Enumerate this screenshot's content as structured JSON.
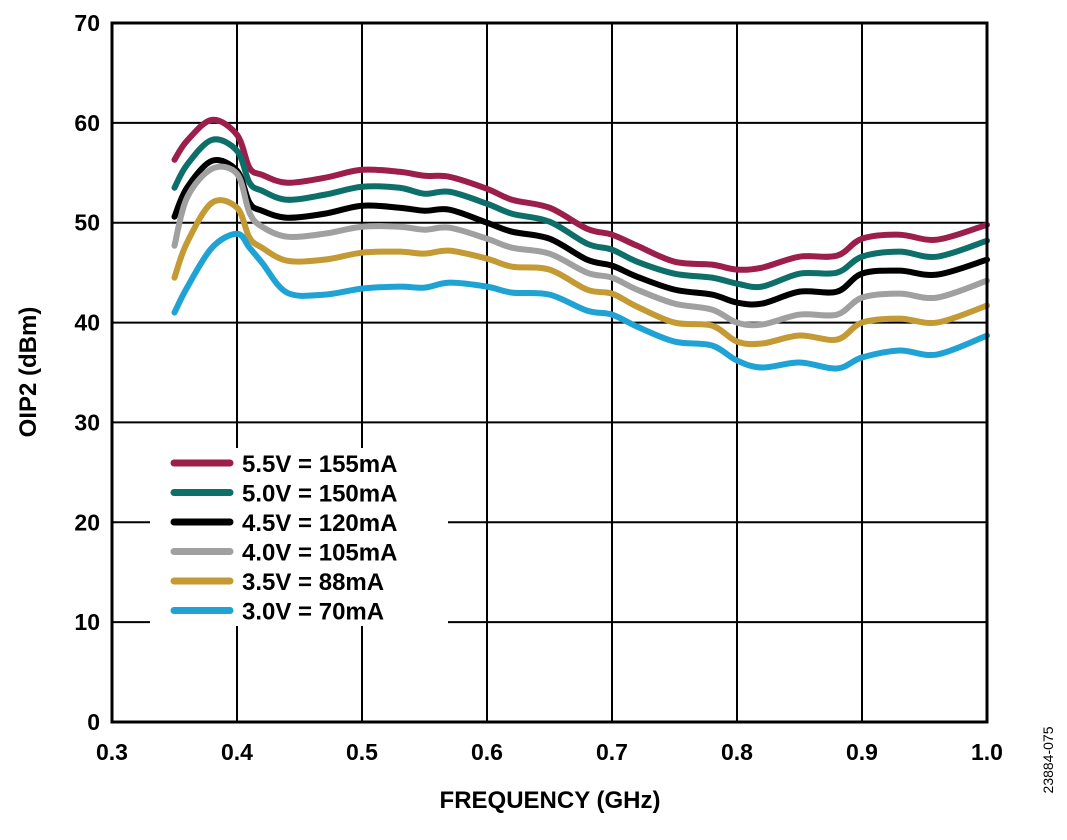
{
  "chart_data": {
    "type": "line",
    "title": "",
    "xlabel": "FREQUENCY (GHz)",
    "ylabel": "OIP2 (dBm)",
    "xlim": [
      0.3,
      1.0
    ],
    "ylim": [
      0,
      70
    ],
    "xticks": [
      "0.3",
      "0.4",
      "0.5",
      "0.6",
      "0.7",
      "0.8",
      "0.9",
      "1.0"
    ],
    "yticks": [
      "0",
      "10",
      "20",
      "30",
      "40",
      "50",
      "60",
      "70"
    ],
    "grid": true,
    "legend_placement": "lower-left",
    "figure_id": "23884-075",
    "x": [
      0.35,
      0.36,
      0.38,
      0.4,
      0.41,
      0.42,
      0.44,
      0.47,
      0.5,
      0.53,
      0.55,
      0.57,
      0.6,
      0.62,
      0.65,
      0.68,
      0.7,
      0.72,
      0.75,
      0.78,
      0.8,
      0.82,
      0.85,
      0.88,
      0.9,
      0.93,
      0.96,
      1.0
    ],
    "series": [
      {
        "name": "5.5V = 155mA",
        "color": "#9b1f4a",
        "values": [
          56.3,
          58.2,
          60.3,
          58.8,
          55.5,
          54.8,
          54.0,
          54.5,
          55.3,
          55.1,
          54.7,
          54.6,
          53.4,
          52.3,
          51.5,
          49.4,
          48.8,
          47.7,
          46.1,
          45.8,
          45.3,
          45.5,
          46.6,
          46.7,
          48.4,
          48.8,
          48.3,
          49.8
        ]
      },
      {
        "name": "5.0V = 150mA",
        "color": "#0e6f6a",
        "values": [
          53.5,
          55.8,
          58.3,
          57.2,
          54.0,
          53.2,
          52.3,
          52.8,
          53.6,
          53.5,
          52.9,
          53.1,
          51.9,
          50.9,
          50.1,
          47.9,
          47.3,
          46.1,
          44.9,
          44.5,
          43.9,
          43.6,
          44.9,
          45.0,
          46.6,
          47.1,
          46.6,
          48.2
        ]
      },
      {
        "name": "4.5V = 120mA",
        "color": "#000000",
        "values": [
          50.6,
          53.5,
          56.2,
          55.2,
          52.0,
          51.2,
          50.5,
          50.9,
          51.7,
          51.5,
          51.2,
          51.3,
          50.0,
          49.1,
          48.4,
          46.3,
          45.7,
          44.6,
          43.3,
          42.8,
          42.0,
          41.9,
          43.1,
          43.1,
          44.9,
          45.2,
          44.8,
          46.3
        ]
      },
      {
        "name": "4.0V = 105mA",
        "color": "#a0a0a0",
        "values": [
          47.7,
          52.5,
          55.4,
          54.9,
          51.0,
          49.6,
          48.6,
          48.9,
          49.6,
          49.6,
          49.3,
          49.5,
          48.4,
          47.5,
          46.9,
          45.0,
          44.5,
          43.3,
          41.9,
          41.3,
          40.0,
          39.8,
          40.8,
          40.8,
          42.5,
          42.9,
          42.5,
          44.2
        ]
      },
      {
        "name": "3.5V = 88mA",
        "color": "#c49a35",
        "values": [
          44.5,
          48.0,
          52.0,
          51.5,
          48.5,
          47.5,
          46.2,
          46.3,
          47.0,
          47.1,
          46.9,
          47.2,
          46.4,
          45.6,
          45.3,
          43.3,
          42.9,
          41.6,
          40.0,
          39.7,
          38.1,
          37.9,
          38.7,
          38.3,
          40.0,
          40.4,
          40.0,
          41.7
        ]
      },
      {
        "name": "3.0V = 70mA",
        "color": "#1fa3d4",
        "values": [
          41.0,
          43.5,
          47.5,
          48.9,
          47.5,
          46.0,
          43.0,
          42.8,
          43.4,
          43.6,
          43.5,
          44.0,
          43.6,
          43.0,
          42.8,
          41.2,
          40.8,
          39.6,
          38.1,
          37.7,
          36.2,
          35.5,
          36.0,
          35.4,
          36.5,
          37.2,
          36.8,
          38.7
        ]
      }
    ]
  }
}
